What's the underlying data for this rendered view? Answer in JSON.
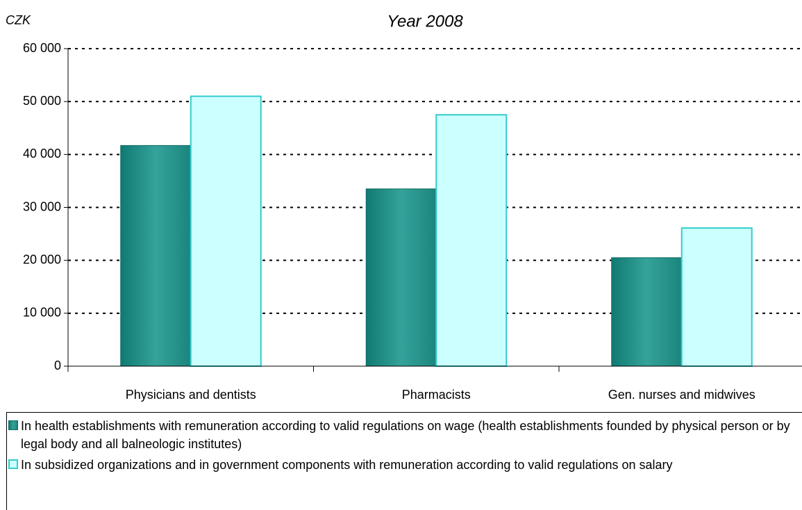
{
  "chart_data": {
    "type": "bar",
    "title": "Year 2008",
    "y_label": "CZK",
    "categories": [
      "Physicians and dentists",
      "Pharmacists",
      "Gen. nurses and midwives"
    ],
    "series": [
      {
        "name": "In health establishments with remuneration according to valid regulations on wage (health establishments founded by physical person or by legal body and all balneologic institutes)",
        "color": "#1f8f86",
        "values": [
          41700,
          33500,
          20500
        ]
      },
      {
        "name": "In subsidized organizations and in government components with remuneration according to valid regulations on salary",
        "color": "#ccffff",
        "values": [
          51000,
          47500,
          26100
        ]
      }
    ],
    "ylim": [
      0,
      60000
    ],
    "yticks": [
      0,
      {
        "value": 10000,
        "label": "10 000"
      },
      {
        "value": 20000,
        "label": "20 000"
      },
      {
        "value": 30000,
        "label": "30 000"
      },
      {
        "value": 40000,
        "label": "40 000"
      },
      {
        "value": 50000,
        "label": "50 000"
      },
      {
        "value": 60000,
        "label": "60 000"
      }
    ],
    "grid": true
  }
}
